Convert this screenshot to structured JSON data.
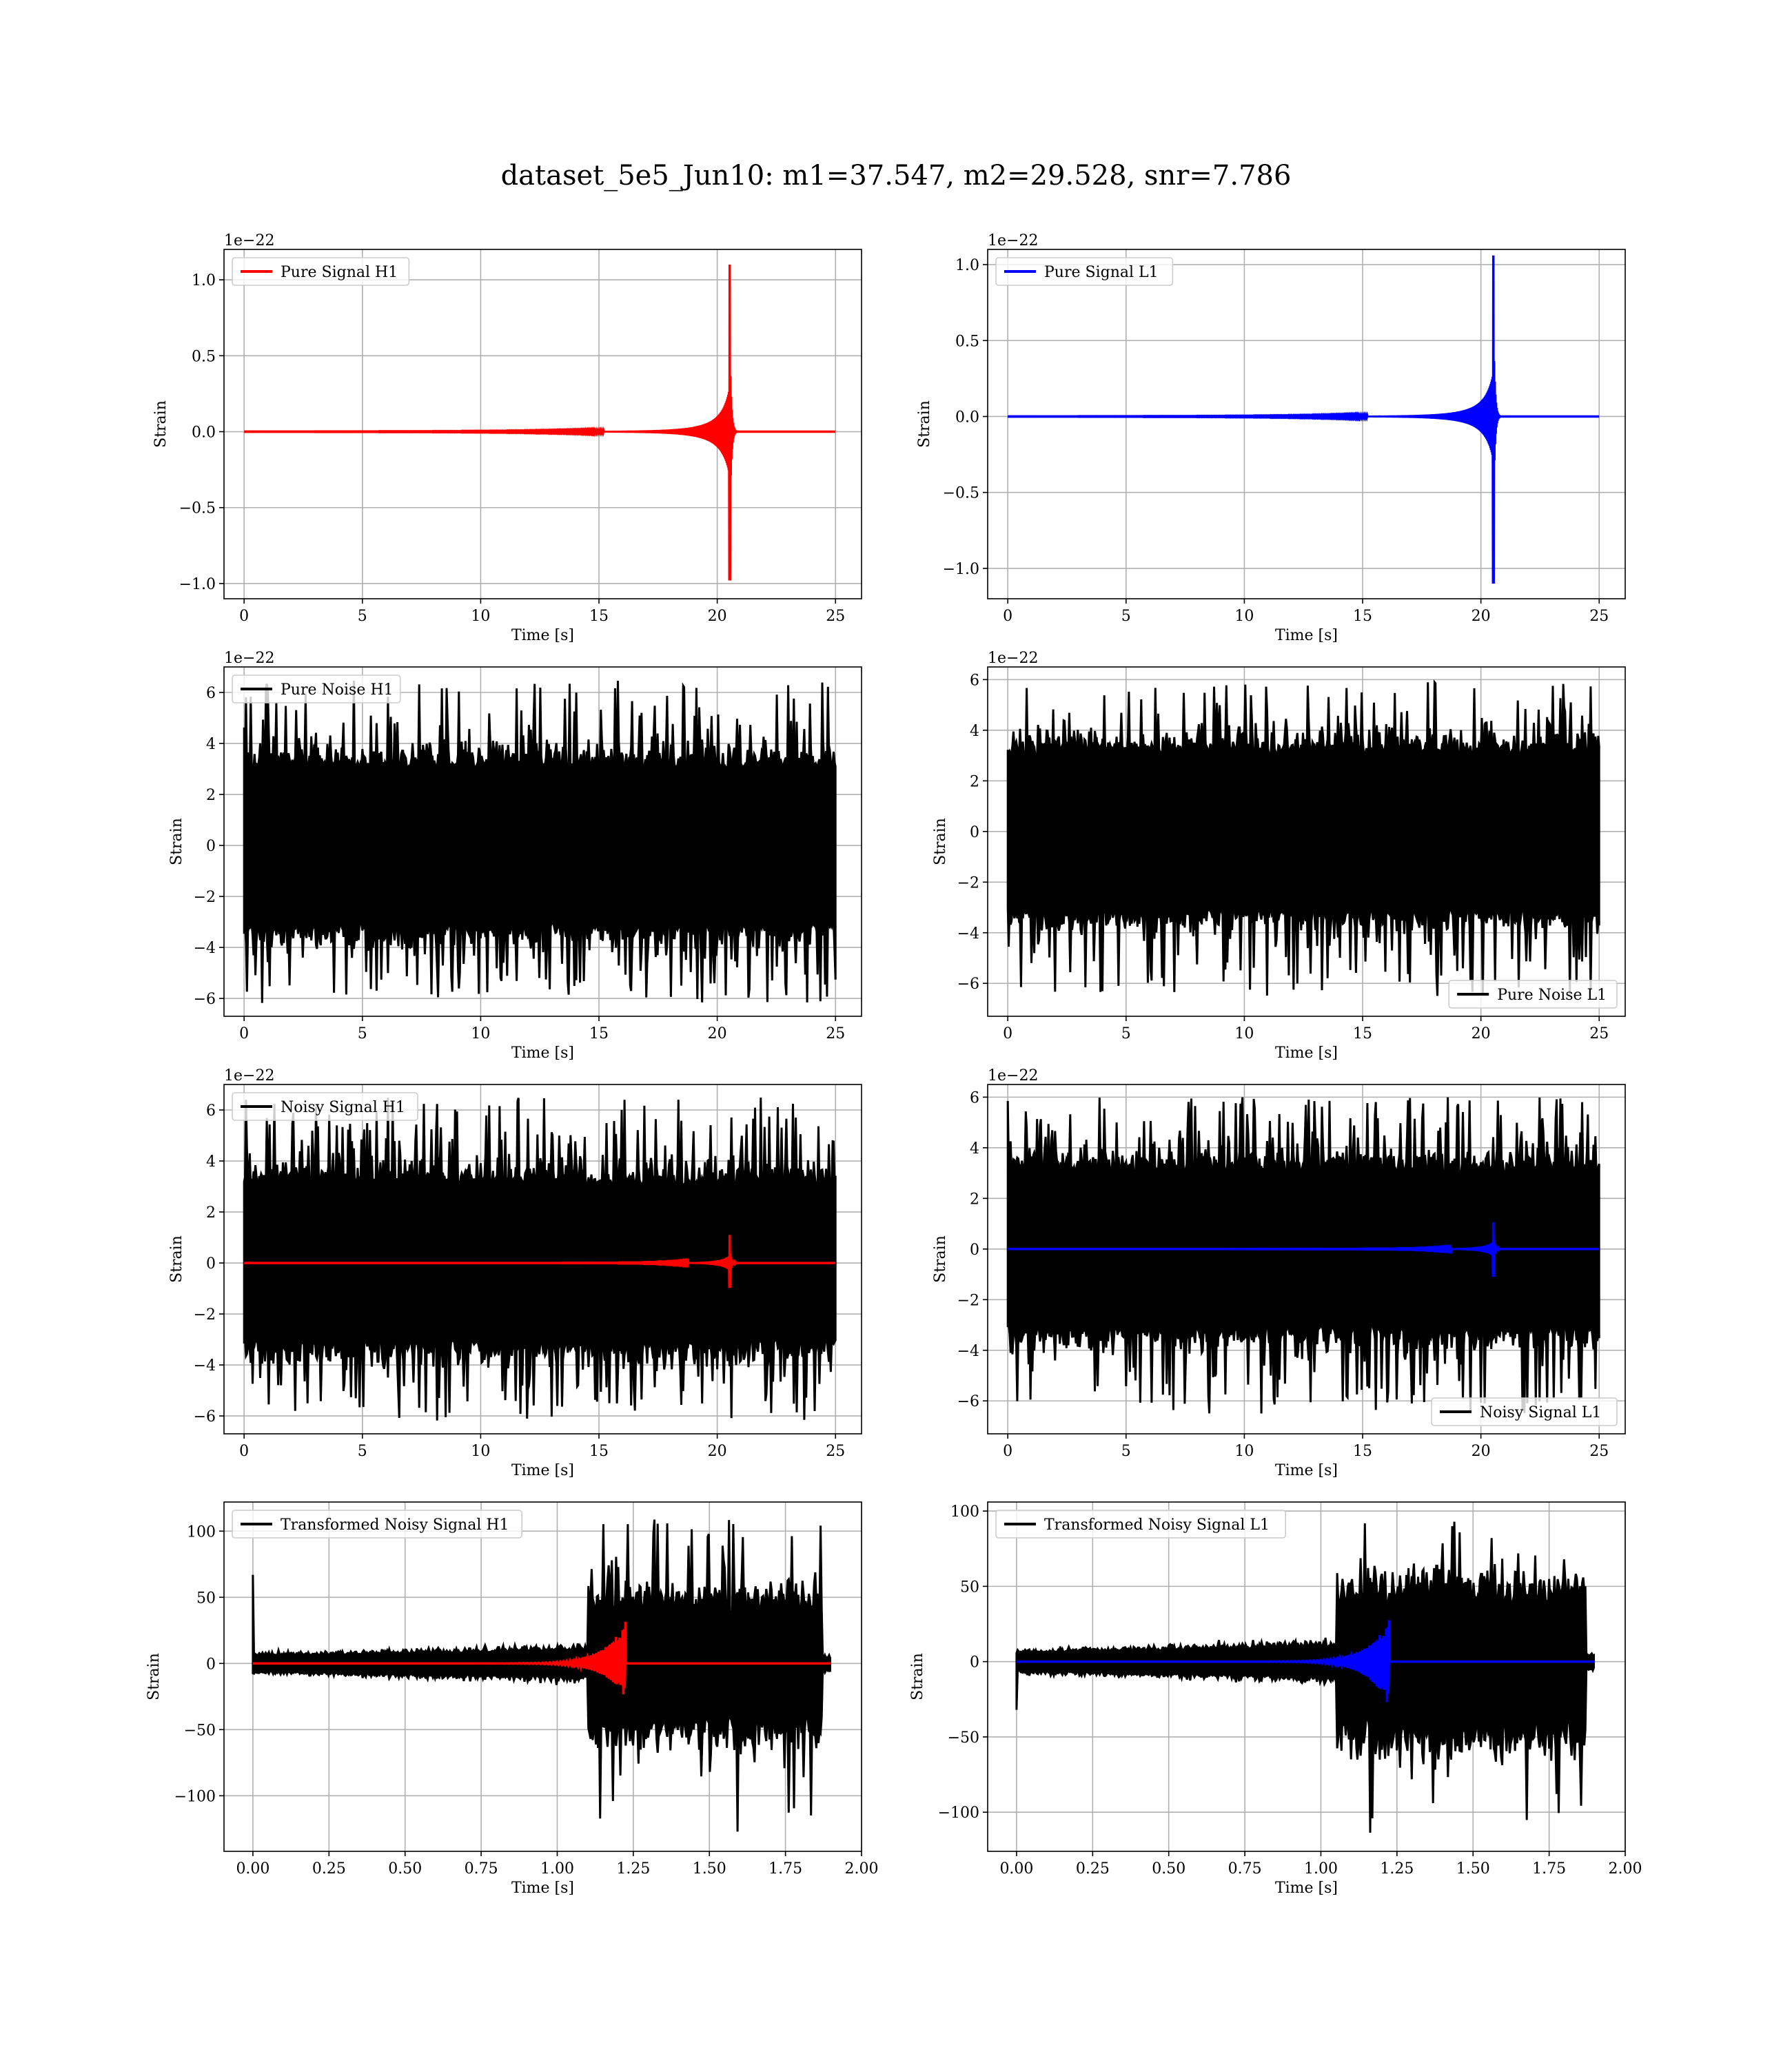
{
  "figure": {
    "title": "dataset_5e5_Jun10: m1=37.547, m2=29.528, snr=7.786"
  },
  "colors": {
    "h1_signal": "#ff0000",
    "l1_signal": "#0000ff",
    "noise": "#000000",
    "grid": "#b0b0b0"
  },
  "chart_data": [
    {
      "id": "pure_signal_h1",
      "type": "line",
      "xlabel": "Time [s]",
      "ylabel": "Strain",
      "offset_text": "1e−22",
      "xlim": [
        -0.85,
        26.1
      ],
      "ylim": [
        -1.1,
        1.2
      ],
      "xticks": [
        0,
        5,
        10,
        15,
        20,
        25
      ],
      "xtick_labels": [
        "0",
        "5",
        "10",
        "15",
        "20",
        "25"
      ],
      "yticks": [
        -1.0,
        -0.5,
        0.0,
        0.5,
        1.0
      ],
      "ytick_labels": [
        "−1.0",
        "−0.5",
        "0.0",
        "0.5",
        "1.0"
      ],
      "legend_position": "upper left",
      "series": [
        {
          "name": "Pure Signal H1",
          "color": "#ff0000",
          "kind": "chirp",
          "t_start": 0,
          "t_end": 25,
          "t_merger": 20.55,
          "merger_peak_max": 1.1,
          "merger_peak_min": -0.98,
          "description_values": {
            "baseline": 0.0
          }
        }
      ]
    },
    {
      "id": "pure_signal_l1",
      "type": "line",
      "xlabel": "Time [s]",
      "ylabel": "Strain",
      "offset_text": "1e−22",
      "xlim": [
        -0.85,
        26.1
      ],
      "ylim": [
        -1.2,
        1.1
      ],
      "xticks": [
        0,
        5,
        10,
        15,
        20,
        25
      ],
      "xtick_labels": [
        "0",
        "5",
        "10",
        "15",
        "20",
        "25"
      ],
      "yticks": [
        -1.0,
        -0.5,
        0.0,
        0.5,
        1.0
      ],
      "ytick_labels": [
        "−1.0",
        "−0.5",
        "0.0",
        "0.5",
        "1.0"
      ],
      "legend_position": "upper left",
      "series": [
        {
          "name": "Pure Signal L1",
          "color": "#0000ff",
          "kind": "chirp",
          "t_start": 0,
          "t_end": 25,
          "t_merger": 20.55,
          "merger_peak_max": 1.06,
          "merger_peak_min": -1.1,
          "description_values": {
            "baseline": 0.0
          }
        }
      ]
    },
    {
      "id": "pure_noise_h1",
      "type": "line",
      "xlabel": "Time [s]",
      "ylabel": "Strain",
      "offset_text": "1e−22",
      "xlim": [
        -0.85,
        26.1
      ],
      "ylim": [
        -6.7,
        7.0
      ],
      "xticks": [
        0,
        5,
        10,
        15,
        20,
        25
      ],
      "xtick_labels": [
        "0",
        "5",
        "10",
        "15",
        "20",
        "25"
      ],
      "yticks": [
        -6,
        -4,
        -2,
        0,
        2,
        4,
        6
      ],
      "ytick_labels": [
        "−6",
        "−4",
        "−2",
        "0",
        "2",
        "4",
        "6"
      ],
      "legend_position": "upper left",
      "series": [
        {
          "name": "Pure Noise H1",
          "color": "#000000",
          "kind": "noise",
          "t_start": 0,
          "t_end": 25,
          "band": 3.0,
          "max": 6.5,
          "min": -6.2
        }
      ]
    },
    {
      "id": "pure_noise_l1",
      "type": "line",
      "xlabel": "Time [s]",
      "ylabel": "Strain",
      "offset_text": "1e−22",
      "xlim": [
        -0.85,
        26.1
      ],
      "ylim": [
        -7.3,
        6.5
      ],
      "xticks": [
        0,
        5,
        10,
        15,
        20,
        25
      ],
      "xtick_labels": [
        "0",
        "5",
        "10",
        "15",
        "20",
        "25"
      ],
      "yticks": [
        -6,
        -4,
        -2,
        0,
        2,
        4,
        6
      ],
      "ytick_labels": [
        "−6",
        "−4",
        "−2",
        "0",
        "2",
        "4",
        "6"
      ],
      "legend_position": "lower right",
      "series": [
        {
          "name": "Pure Noise L1",
          "color": "#000000",
          "kind": "noise",
          "t_start": 0,
          "t_end": 25,
          "band": 3.0,
          "max": 6.0,
          "min": -6.5
        }
      ]
    },
    {
      "id": "noisy_signal_h1",
      "type": "line",
      "xlabel": "Time [s]",
      "ylabel": "Strain",
      "offset_text": "1e−22",
      "xlim": [
        -0.85,
        26.1
      ],
      "ylim": [
        -6.7,
        7.0
      ],
      "xticks": [
        0,
        5,
        10,
        15,
        20,
        25
      ],
      "xtick_labels": [
        "0",
        "5",
        "10",
        "15",
        "20",
        "25"
      ],
      "yticks": [
        -6,
        -4,
        -2,
        0,
        2,
        4,
        6
      ],
      "ytick_labels": [
        "−6",
        "−4",
        "−2",
        "0",
        "2",
        "4",
        "6"
      ],
      "legend_position": "upper left",
      "series": [
        {
          "name": "Noisy Signal H1",
          "color": "#000000",
          "kind": "noise",
          "t_start": 0,
          "t_end": 25,
          "band": 3.0,
          "max": 6.5,
          "min": -6.2
        },
        {
          "color": "#ff0000",
          "kind": "chirp",
          "t_start": 0,
          "t_end": 25,
          "t_merger": 20.55,
          "merger_peak_max": 1.1,
          "merger_peak_min": -0.98
        }
      ]
    },
    {
      "id": "noisy_signal_l1",
      "type": "line",
      "xlabel": "Time [s]",
      "ylabel": "Strain",
      "offset_text": "1e−22",
      "xlim": [
        -0.85,
        26.1
      ],
      "ylim": [
        -7.3,
        6.5
      ],
      "xticks": [
        0,
        5,
        10,
        15,
        20,
        25
      ],
      "xtick_labels": [
        "0",
        "5",
        "10",
        "15",
        "20",
        "25"
      ],
      "yticks": [
        -6,
        -4,
        -2,
        0,
        2,
        4,
        6
      ],
      "ytick_labels": [
        "−6",
        "−4",
        "−2",
        "0",
        "2",
        "4",
        "6"
      ],
      "legend_position": "lower right",
      "series": [
        {
          "name": "Noisy Signal L1",
          "color": "#000000",
          "kind": "noise",
          "t_start": 0,
          "t_end": 25,
          "band": 3.0,
          "max": 6.0,
          "min": -6.5
        },
        {
          "color": "#0000ff",
          "kind": "chirp",
          "t_start": 0,
          "t_end": 25,
          "t_merger": 20.55,
          "merger_peak_max": 1.06,
          "merger_peak_min": -1.1
        }
      ]
    },
    {
      "id": "transformed_noisy_signal_h1",
      "type": "line",
      "xlabel": "Time [s]",
      "ylabel": "Strain",
      "offset_text": "",
      "xlim": [
        -0.095,
        2.0
      ],
      "ylim": [
        -142,
        122
      ],
      "xticks": [
        0.0,
        0.25,
        0.5,
        0.75,
        1.0,
        1.25,
        1.5,
        1.75,
        2.0
      ],
      "xtick_labels": [
        "0.00",
        "0.25",
        "0.50",
        "0.75",
        "1.00",
        "1.25",
        "1.50",
        "1.75",
        "2.00"
      ],
      "yticks": [
        -100,
        -50,
        0,
        50,
        100
      ],
      "ytick_labels": [
        "−100",
        "−50",
        "0",
        "50",
        "100"
      ],
      "legend_position": "upper left",
      "series": [
        {
          "name": "Transformed Noisy Signal H1",
          "color": "#000000",
          "kind": "transformed_noise",
          "t_start": 0,
          "t_end": 1.9,
          "t_rise": 1.1,
          "t_drop": 1.87,
          "low_band": 8,
          "high_band": 45,
          "max": 110,
          "min": -130,
          "spike_at_zero": 67
        },
        {
          "color": "#ff0000",
          "kind": "transformed_chirp",
          "t_start": 0,
          "t_end": 1.9,
          "t_merger": 1.225,
          "peak_max": 32,
          "peak_min": -26
        }
      ]
    },
    {
      "id": "transformed_noisy_signal_l1",
      "type": "line",
      "xlabel": "Time [s]",
      "ylabel": "Strain",
      "offset_text": "",
      "xlim": [
        -0.095,
        2.0
      ],
      "ylim": [
        -126,
        106
      ],
      "xticks": [
        0.0,
        0.25,
        0.5,
        0.75,
        1.0,
        1.25,
        1.5,
        1.75,
        2.0
      ],
      "xtick_labels": [
        "0.00",
        "0.25",
        "0.50",
        "0.75",
        "1.00",
        "1.25",
        "1.50",
        "1.75",
        "2.00"
      ],
      "yticks": [
        -100,
        -50,
        0,
        50,
        100
      ],
      "ytick_labels": [
        "−100",
        "−50",
        "0",
        "50",
        "100"
      ],
      "legend_position": "upper left",
      "series": [
        {
          "name": "Transformed Noisy Signal L1",
          "color": "#000000",
          "kind": "transformed_noise",
          "t_start": 0,
          "t_end": 1.9,
          "t_rise": 1.05,
          "t_drop": 1.87,
          "low_band": 8,
          "high_band": 45,
          "max": 95,
          "min": -115,
          "spike_at_zero": -32
        },
        {
          "color": "#0000ff",
          "kind": "transformed_chirp",
          "t_start": 0,
          "t_end": 1.9,
          "t_merger": 1.225,
          "peak_max": 28,
          "peak_min": -30
        }
      ]
    }
  ]
}
